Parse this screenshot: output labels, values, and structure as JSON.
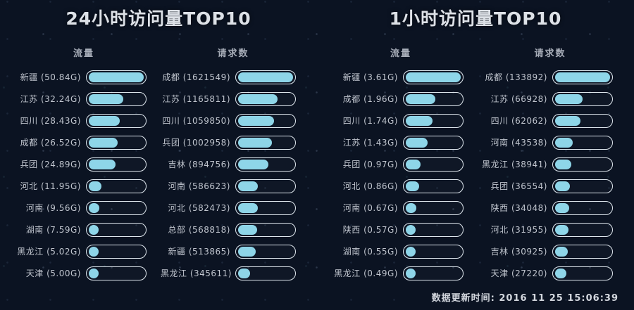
{
  "colors": {
    "background": "#0b1322",
    "bar_fill": "#8ed5e8",
    "bar_border": "#dfe7ee",
    "text": "#bfc4cd",
    "title": "#dde1e7"
  },
  "footer": {
    "update_time_label": "数据更新时间: 2016 11 25 15:06:39"
  },
  "panels": [
    {
      "title": "24小时访问量TOP10",
      "columns": [
        {
          "key": "traffic",
          "header": "流量",
          "rows": [
            {
              "name": "新疆",
              "display": "(50.84G)",
              "pct": 100
            },
            {
              "name": "江苏",
              "display": "(32.24G)",
              "pct": 63.4
            },
            {
              "name": "四川",
              "display": "(28.43G)",
              "pct": 55.9
            },
            {
              "name": "成都",
              "display": "(26.52G)",
              "pct": 52.2
            },
            {
              "name": "兵团",
              "display": "(24.89G)",
              "pct": 49.0
            },
            {
              "name": "河北",
              "display": "(11.95G)",
              "pct": 23.5
            },
            {
              "name": "河南",
              "display": "(9.56G)",
              "pct": 18.8
            },
            {
              "name": "湖南",
              "display": "(7.59G)",
              "pct": 14.9
            },
            {
              "name": "黑龙江",
              "display": "(5.02G)",
              "pct": 9.9
            },
            {
              "name": "天津",
              "display": "(5.00G)",
              "pct": 9.8
            }
          ]
        },
        {
          "key": "requests",
          "header": "请求数",
          "rows": [
            {
              "name": "成都",
              "display": "(1621549)",
              "pct": 100
            },
            {
              "name": "江苏",
              "display": "(1165811)",
              "pct": 71.9
            },
            {
              "name": "四川",
              "display": "(1059850)",
              "pct": 65.4
            },
            {
              "name": "兵团",
              "display": "(1002958)",
              "pct": 61.9
            },
            {
              "name": "吉林",
              "display": "(894756)",
              "pct": 55.2
            },
            {
              "name": "河南",
              "display": "(586623)",
              "pct": 36.2
            },
            {
              "name": "河北",
              "display": "(582473)",
              "pct": 35.9
            },
            {
              "name": "总部",
              "display": "(568818)",
              "pct": 35.1
            },
            {
              "name": "新疆",
              "display": "(513865)",
              "pct": 31.7
            },
            {
              "name": "黑龙江",
              "display": "(345611)",
              "pct": 21.3
            }
          ]
        }
      ]
    },
    {
      "title": "1小时访问量TOP10",
      "columns": [
        {
          "key": "traffic",
          "header": "流量",
          "rows": [
            {
              "name": "新疆",
              "display": "(3.61G)",
              "pct": 100
            },
            {
              "name": "成都",
              "display": "(1.96G)",
              "pct": 54.3
            },
            {
              "name": "四川",
              "display": "(1.74G)",
              "pct": 48.2
            },
            {
              "name": "江苏",
              "display": "(1.43G)",
              "pct": 39.6
            },
            {
              "name": "兵团",
              "display": "(0.97G)",
              "pct": 26.9
            },
            {
              "name": "河北",
              "display": "(0.86G)",
              "pct": 23.8
            },
            {
              "name": "河南",
              "display": "(0.67G)",
              "pct": 18.6
            },
            {
              "name": "陕西",
              "display": "(0.57G)",
              "pct": 15.8
            },
            {
              "name": "湖南",
              "display": "(0.55G)",
              "pct": 15.2
            },
            {
              "name": "黑龙江",
              "display": "(0.49G)",
              "pct": 13.6
            }
          ]
        },
        {
          "key": "requests",
          "header": "请求数",
          "rows": [
            {
              "name": "成都",
              "display": "(133892)",
              "pct": 100
            },
            {
              "name": "江苏",
              "display": "(66928)",
              "pct": 50.0
            },
            {
              "name": "四川",
              "display": "(62062)",
              "pct": 46.4
            },
            {
              "name": "河南",
              "display": "(43538)",
              "pct": 32.5
            },
            {
              "name": "黑龙江",
              "display": "(38941)",
              "pct": 29.1
            },
            {
              "name": "兵团",
              "display": "(36554)",
              "pct": 27.3
            },
            {
              "name": "陕西",
              "display": "(34048)",
              "pct": 25.4
            },
            {
              "name": "河北",
              "display": "(31955)",
              "pct": 23.9
            },
            {
              "name": "吉林",
              "display": "(30925)",
              "pct": 23.1
            },
            {
              "name": "天津",
              "display": "(27220)",
              "pct": 20.3
            }
          ]
        }
      ]
    }
  ],
  "chart_data": [
    {
      "type": "bar",
      "orientation": "horizontal",
      "title": "24小时访问量TOP10 - 流量",
      "categories": [
        "新疆",
        "江苏",
        "四川",
        "成都",
        "兵团",
        "河北",
        "河南",
        "湖南",
        "黑龙江",
        "天津"
      ],
      "values": [
        50.84,
        32.24,
        28.43,
        26.52,
        24.89,
        11.95,
        9.56,
        7.59,
        5.02,
        5.0
      ],
      "unit": "G",
      "xlim": [
        0,
        50.84
      ],
      "legend": false,
      "grid": false
    },
    {
      "type": "bar",
      "orientation": "horizontal",
      "title": "24小时访问量TOP10 - 请求数",
      "categories": [
        "成都",
        "江苏",
        "四川",
        "兵团",
        "吉林",
        "河南",
        "河北",
        "总部",
        "新疆",
        "黑龙江"
      ],
      "values": [
        1621549,
        1165811,
        1059850,
        1002958,
        894756,
        586623,
        582473,
        568818,
        513865,
        345611
      ],
      "unit": "",
      "xlim": [
        0,
        1621549
      ],
      "legend": false,
      "grid": false
    },
    {
      "type": "bar",
      "orientation": "horizontal",
      "title": "1小时访问量TOP10 - 流量",
      "categories": [
        "新疆",
        "成都",
        "四川",
        "江苏",
        "兵团",
        "河北",
        "河南",
        "陕西",
        "湖南",
        "黑龙江"
      ],
      "values": [
        3.61,
        1.96,
        1.74,
        1.43,
        0.97,
        0.86,
        0.67,
        0.57,
        0.55,
        0.49
      ],
      "unit": "G",
      "xlim": [
        0,
        3.61
      ],
      "legend": false,
      "grid": false
    },
    {
      "type": "bar",
      "orientation": "horizontal",
      "title": "1小时访问量TOP10 - 请求数",
      "categories": [
        "成都",
        "江苏",
        "四川",
        "河南",
        "黑龙江",
        "兵团",
        "陕西",
        "河北",
        "吉林",
        "天津"
      ],
      "values": [
        133892,
        66928,
        62062,
        43538,
        38941,
        36554,
        34048,
        31955,
        30925,
        27220
      ],
      "unit": "",
      "xlim": [
        0,
        133892
      ],
      "legend": false,
      "grid": false
    }
  ]
}
